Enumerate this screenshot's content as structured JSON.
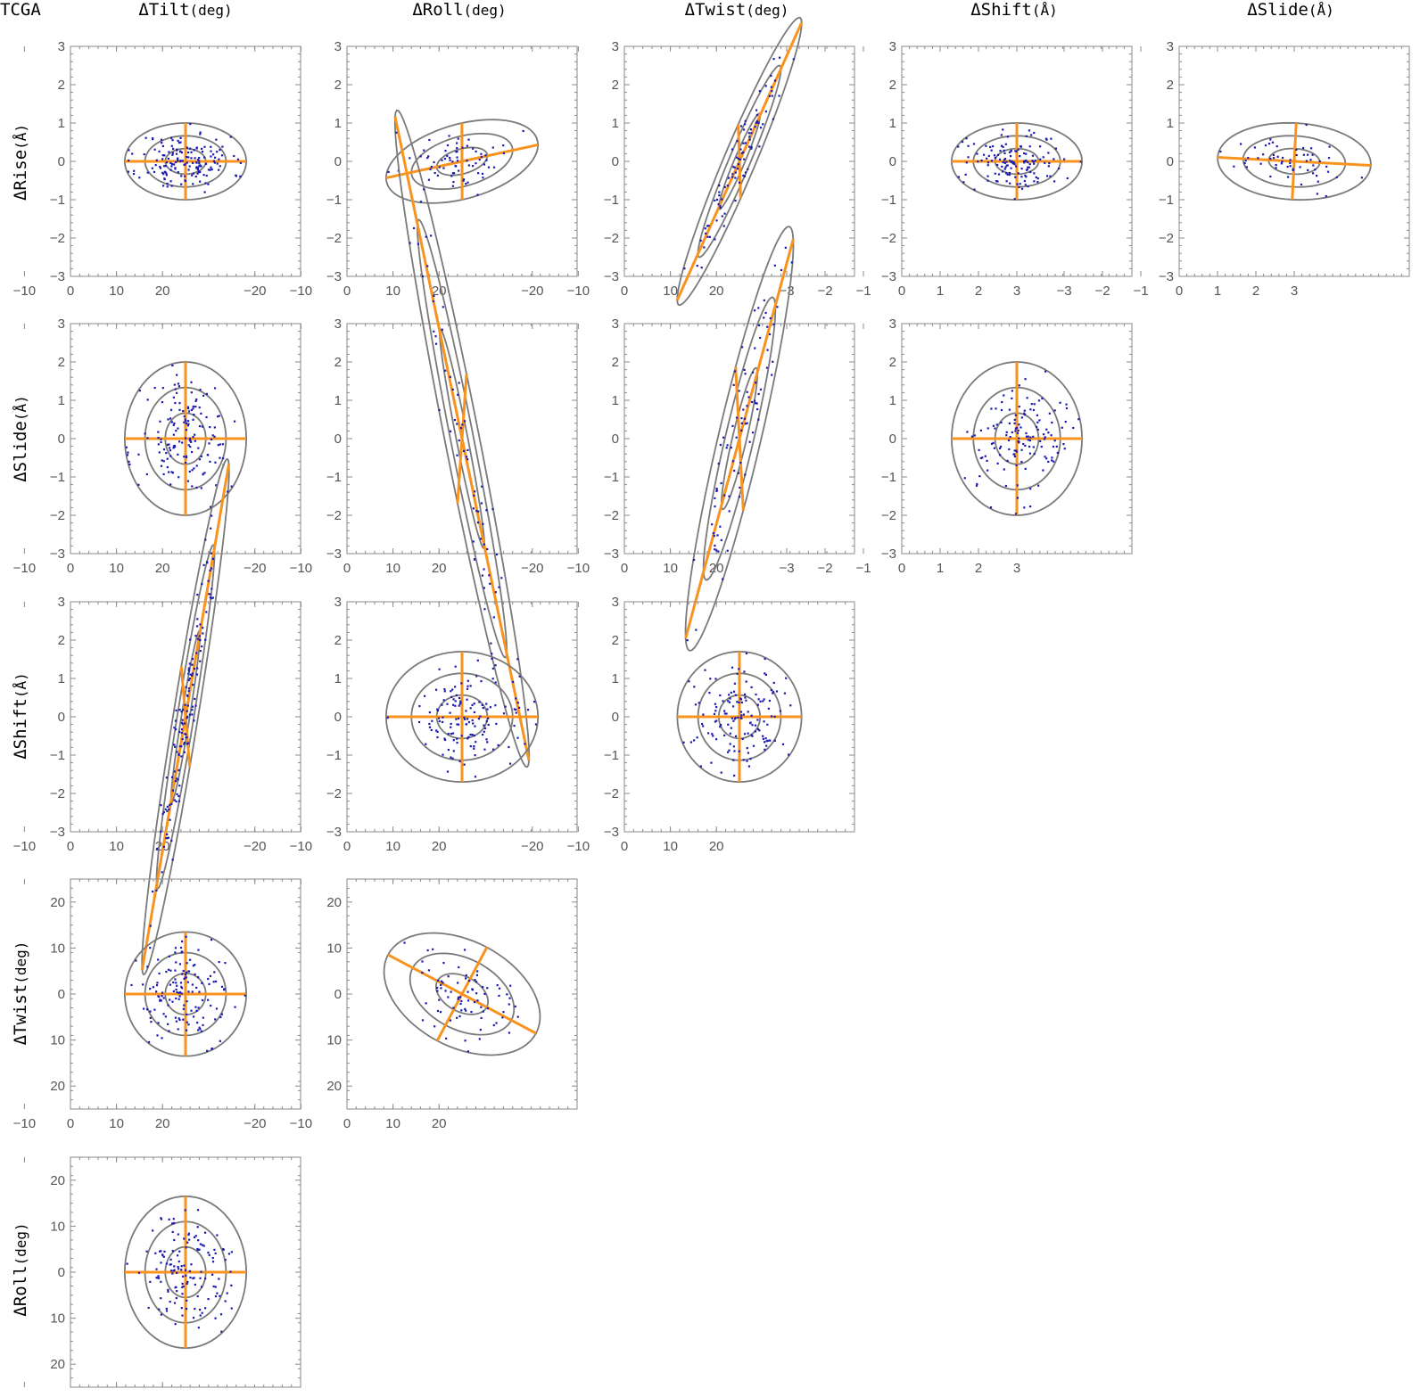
{
  "figure": {
    "corner_label": "TCGA",
    "columns": [
      {
        "name": "ΔTilt",
        "unit": "(deg)"
      },
      {
        "name": "ΔRoll",
        "unit": "(deg)"
      },
      {
        "name": "ΔTwist",
        "unit": "(deg)"
      },
      {
        "name": "ΔShift",
        "unit": "(Å)"
      },
      {
        "name": "ΔSlide",
        "unit": "(Å)"
      }
    ],
    "rows": [
      {
        "name": "ΔRise",
        "unit": "(Å)"
      },
      {
        "name": "ΔSlide",
        "unit": "(Å)"
      },
      {
        "name": "ΔShift",
        "unit": "(Å)"
      },
      {
        "name": "ΔTwist",
        "unit": "(deg)"
      },
      {
        "name": "ΔRoll",
        "unit": "(deg)"
      }
    ],
    "colors": {
      "points": "#1a1ab0",
      "principal_axes": "#f7931e",
      "ellipses": "#7a7a7a",
      "frame": "#8a8a8a"
    }
  },
  "chart_data": [
    {
      "type": "scatter",
      "row": 0,
      "col": 0,
      "x_param": "ΔTilt",
      "y_param": "ΔRise",
      "xlim": [
        -25,
        25
      ],
      "ylim": [
        -3,
        3
      ],
      "xticks": [
        "−20",
        "−10",
        "0",
        "10",
        "20"
      ],
      "yticks": [
        "3",
        "2",
        "1",
        "0",
        "−1",
        "−2",
        "−3"
      ],
      "axis_a": 13.2,
      "axis_b": 1.0,
      "tilt_deg": 0,
      "n_points": 160,
      "seed": 11
    },
    {
      "type": "scatter",
      "row": 0,
      "col": 1,
      "x_param": "ΔRoll",
      "y_param": "ΔRise",
      "xlim": [
        -25,
        25
      ],
      "ylim": [
        -3,
        3
      ],
      "xticks": [
        "−20",
        "−10",
        "0",
        "10",
        "20"
      ],
      "yticks": [
        "3",
        "2",
        "1",
        "0",
        "−1",
        "−2",
        "−3"
      ],
      "axis_a": 16.5,
      "axis_b": 1.0,
      "tilt_deg": 1.5,
      "n_points": 70,
      "seed": 12
    },
    {
      "type": "scatter",
      "row": 0,
      "col": 2,
      "x_param": "ΔTwist",
      "y_param": "ΔRise",
      "xlim": [
        -25,
        25
      ],
      "ylim": [
        -3,
        3
      ],
      "xticks": [
        "−20",
        "−10",
        "0",
        "10",
        "20"
      ],
      "yticks": [
        "3",
        "2",
        "1",
        "0",
        "−1",
        "−2",
        "−3"
      ],
      "axis_a": 14.0,
      "axis_b": 1.0,
      "tilt_deg": 15,
      "n_points": 90,
      "seed": 13
    },
    {
      "type": "scatter",
      "row": 0,
      "col": 3,
      "x_param": "ΔShift",
      "y_param": "ΔRise",
      "xlim": [
        -3,
        3
      ],
      "ylim": [
        -3,
        3
      ],
      "xticks": [
        "−3",
        "−2",
        "−1",
        "0",
        "1",
        "2",
        "3"
      ],
      "yticks": [
        "3",
        "2",
        "1",
        "0",
        "−1",
        "−2",
        "−3"
      ],
      "axis_a": 1.7,
      "axis_b": 1.0,
      "tilt_deg": 0,
      "n_points": 140,
      "seed": 14
    },
    {
      "type": "scatter",
      "row": 0,
      "col": 4,
      "x_param": "ΔSlide",
      "y_param": "ΔRise",
      "xlim": [
        -3,
        3
      ],
      "ylim": [
        -3,
        3
      ],
      "xticks": [
        "−3",
        "−2",
        "−1",
        "0",
        "1",
        "2",
        "3"
      ],
      "yticks": [
        "3",
        "2",
        "1",
        "0",
        "−1",
        "−2",
        "−3"
      ],
      "axis_a": 2.0,
      "axis_b": 1.0,
      "tilt_deg": -3,
      "n_points": 60,
      "seed": 15
    },
    {
      "type": "scatter",
      "row": 1,
      "col": 0,
      "x_param": "ΔTilt",
      "y_param": "ΔSlide",
      "xlim": [
        -25,
        25
      ],
      "ylim": [
        -3,
        3
      ],
      "xticks": [
        "−20",
        "−10",
        "0",
        "10",
        "20"
      ],
      "yticks": [
        "3",
        "2",
        "1",
        "0",
        "−1",
        "−2",
        "−3"
      ],
      "axis_a": 13.2,
      "axis_b": 2.0,
      "tilt_deg": 0,
      "n_points": 150,
      "seed": 21
    },
    {
      "type": "scatter",
      "row": 1,
      "col": 1,
      "x_param": "ΔRoll",
      "y_param": "ΔSlide",
      "xlim": [
        -25,
        25
      ],
      "ylim": [
        -3,
        3
      ],
      "xticks": [
        "−20",
        "−10",
        "0",
        "10",
        "20"
      ],
      "yticks": [
        "3",
        "2",
        "1",
        "0",
        "−1",
        "−2",
        "−3"
      ],
      "axis_a": 16.8,
      "axis_b": 1.95,
      "tilt_deg": -30,
      "n_points": 70,
      "seed": 22
    },
    {
      "type": "scatter",
      "row": 1,
      "col": 2,
      "x_param": "ΔTwist",
      "y_param": "ΔSlide",
      "xlim": [
        -25,
        25
      ],
      "ylim": [
        -3,
        3
      ],
      "xticks": [
        "−20",
        "−10",
        "0",
        "10",
        "20"
      ],
      "yticks": [
        "3",
        "2",
        "1",
        "0",
        "−1",
        "−2",
        "−3"
      ],
      "axis_a": 12.8,
      "axis_b": 2.05,
      "tilt_deg": 24,
      "n_points": 90,
      "seed": 23
    },
    {
      "type": "scatter",
      "row": 1,
      "col": 3,
      "x_param": "ΔShift",
      "y_param": "ΔSlide",
      "xlim": [
        -3,
        3
      ],
      "ylim": [
        -3,
        3
      ],
      "xticks": [
        "−3",
        "−2",
        "−1",
        "0",
        "1",
        "2",
        "3"
      ],
      "yticks": [
        "3",
        "2",
        "1",
        "0",
        "−1",
        "−2",
        "−3"
      ],
      "axis_a": 1.7,
      "axis_b": 2.0,
      "tilt_deg": 0,
      "n_points": 140,
      "seed": 24
    },
    {
      "type": "scatter",
      "row": 2,
      "col": 0,
      "x_param": "ΔTilt",
      "y_param": "ΔShift",
      "xlim": [
        -25,
        25
      ],
      "ylim": [
        -3,
        3
      ],
      "xticks": [
        "−20",
        "−10",
        "0",
        "10",
        "20"
      ],
      "yticks": [
        "3",
        "2",
        "1",
        "0",
        "−1",
        "−2",
        "−3"
      ],
      "axis_a": 11.5,
      "axis_b": 1.6,
      "tilt_deg": 35,
      "n_points": 140,
      "seed": 31
    },
    {
      "type": "scatter",
      "row": 2,
      "col": 1,
      "x_param": "ΔRoll",
      "y_param": "ΔShift",
      "xlim": [
        -25,
        25
      ],
      "ylim": [
        -3,
        3
      ],
      "xticks": [
        "−20",
        "−10",
        "0",
        "10",
        "20"
      ],
      "yticks": [
        "3",
        "2",
        "1",
        "0",
        "−1",
        "−2",
        "−3"
      ],
      "axis_a": 16.5,
      "axis_b": 1.7,
      "tilt_deg": 0,
      "n_points": 140,
      "seed": 32
    },
    {
      "type": "scatter",
      "row": 2,
      "col": 2,
      "x_param": "ΔTwist",
      "y_param": "ΔShift",
      "xlim": [
        -25,
        25
      ],
      "ylim": [
        -3,
        3
      ],
      "xticks": [
        "−20",
        "−10",
        "0",
        "10",
        "20"
      ],
      "yticks": [
        "3",
        "2",
        "1",
        "0",
        "−1",
        "−2",
        "−3"
      ],
      "axis_a": 13.5,
      "axis_b": 1.7,
      "tilt_deg": 0,
      "n_points": 140,
      "seed": 33
    },
    {
      "type": "scatter",
      "row": 3,
      "col": 0,
      "x_param": "ΔTilt",
      "y_param": "ΔTwist",
      "xlim": [
        -25,
        25
      ],
      "ylim": [
        -25,
        25
      ],
      "xticks": [
        "−20",
        "−10",
        "0",
        "10",
        "20"
      ],
      "yticks": [
        "20",
        "10",
        "0",
        "10",
        "20"
      ],
      "axis_a": 13.2,
      "axis_b": 13.5,
      "tilt_deg": 0,
      "n_points": 140,
      "seed": 41
    },
    {
      "type": "scatter",
      "row": 3,
      "col": 1,
      "x_param": "ΔRoll",
      "y_param": "ΔTwist",
      "xlim": [
        -25,
        25
      ],
      "ylim": [
        -25,
        25
      ],
      "xticks": [
        "−20",
        "−10",
        "0",
        "10",
        "20"
      ],
      "yticks": [
        "20",
        "10",
        "0",
        "10",
        "20"
      ],
      "axis_a": 18.2,
      "axis_b": 11.5,
      "tilt_deg": -28,
      "n_points": 80,
      "seed": 42
    },
    {
      "type": "scatter",
      "row": 4,
      "col": 0,
      "x_param": "ΔTilt",
      "y_param": "ΔRoll",
      "xlim": [
        -25,
        25
      ],
      "ylim": [
        -25,
        25
      ],
      "xticks": [
        "−20",
        "−10",
        "0",
        "10",
        "20"
      ],
      "yticks": [
        "20",
        "10",
        "0",
        "10",
        "20"
      ],
      "axis_a": 13.2,
      "axis_b": 16.5,
      "tilt_deg": 0,
      "n_points": 140,
      "seed": 51
    }
  ]
}
